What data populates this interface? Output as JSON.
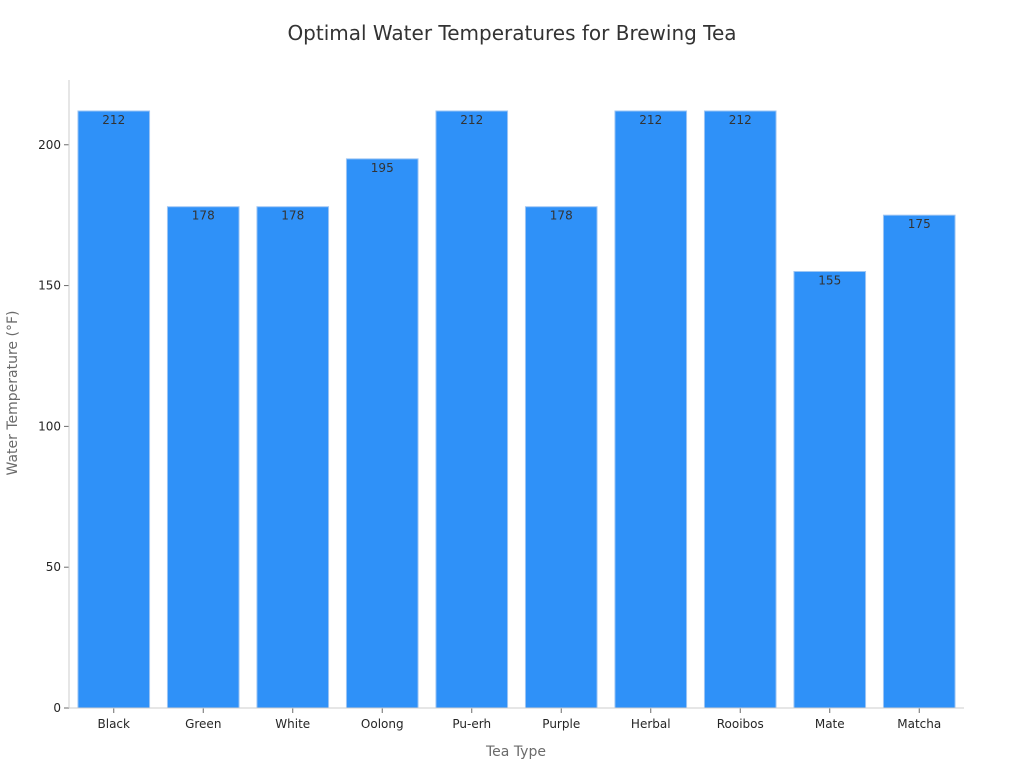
{
  "chart_data": {
    "type": "bar",
    "title": "Optimal Water Temperatures for Brewing Tea",
    "xlabel": "Tea Type",
    "ylabel": "Water Temperature (°F)",
    "categories": [
      "Black",
      "Green",
      "White",
      "Oolong",
      "Pu-erh",
      "Purple",
      "Herbal",
      "Rooibos",
      "Mate",
      "Matcha"
    ],
    "values": [
      212,
      178,
      178,
      195,
      212,
      178,
      212,
      212,
      155,
      175
    ],
    "ylim": [
      0,
      223
    ],
    "yticks": [
      0,
      50,
      100,
      150,
      200
    ],
    "grid": false,
    "legend": "none",
    "bar_color": "#2f91f8",
    "bar_edge_color": "#9fc6f3"
  }
}
